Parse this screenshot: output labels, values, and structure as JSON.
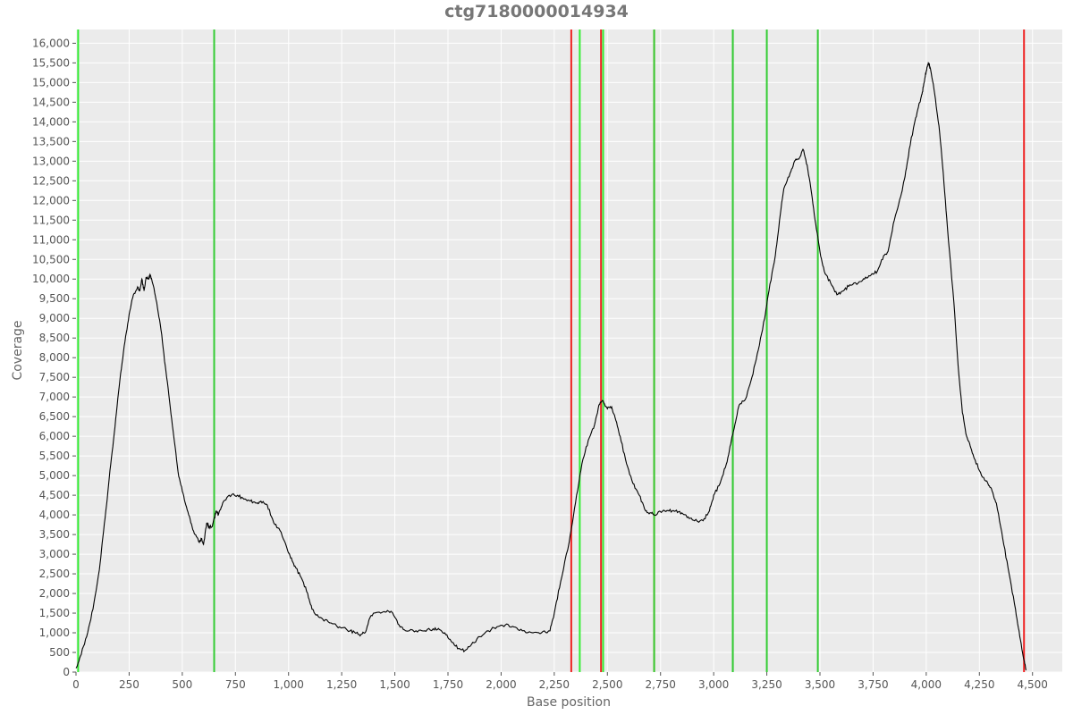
{
  "chart_data": {
    "type": "line",
    "title": "ctg7180000014934",
    "xlabel": "Base position",
    "ylabel": "Coverage",
    "xlim": [
      0,
      4640
    ],
    "ylim": [
      0,
      16350
    ],
    "x_ticks": [
      0,
      250,
      500,
      750,
      1000,
      1250,
      1500,
      1750,
      2000,
      2250,
      2500,
      2750,
      3000,
      3250,
      3500,
      3750,
      4000,
      4250,
      4500
    ],
    "x_tick_labels": [
      "0",
      "250",
      "500",
      "750",
      "1,000",
      "1,250",
      "1,500",
      "1,750",
      "2,000",
      "2,250",
      "2,500",
      "2,750",
      "3,000",
      "3,250",
      "3,500",
      "3,750",
      "4,000",
      "4,250",
      "4,500"
    ],
    "y_ticks": [
      0,
      500,
      1000,
      1500,
      2000,
      2500,
      3000,
      3500,
      4000,
      4500,
      5000,
      5500,
      6000,
      6500,
      7000,
      7500,
      8000,
      8500,
      9000,
      9500,
      10000,
      10500,
      11000,
      11500,
      12000,
      12500,
      13000,
      13500,
      14000,
      14500,
      15000,
      15500,
      16000
    ],
    "y_tick_labels": [
      "0",
      "500",
      "1,000",
      "1,500",
      "2,000",
      "2,500",
      "3,000",
      "3,500",
      "4,000",
      "4,500",
      "5,000",
      "5,500",
      "6,000",
      "6,500",
      "7,000",
      "7,500",
      "8,000",
      "8,500",
      "9,000",
      "9,500",
      "10,000",
      "10,500",
      "11,000",
      "11,500",
      "12,000",
      "12,500",
      "13,000",
      "13,500",
      "14,000",
      "14,500",
      "15,000",
      "15,500",
      "16,000"
    ],
    "grid": true,
    "series": [
      {
        "color": "#000000",
        "points": [
          [
            0,
            100
          ],
          [
            20,
            400
          ],
          [
            50,
            900
          ],
          [
            80,
            1600
          ],
          [
            110,
            2600
          ],
          [
            130,
            3600
          ],
          [
            150,
            4600
          ],
          [
            170,
            5600
          ],
          [
            190,
            6600
          ],
          [
            210,
            7600
          ],
          [
            230,
            8400
          ],
          [
            250,
            9100
          ],
          [
            270,
            9600
          ],
          [
            290,
            9800
          ],
          [
            300,
            9700
          ],
          [
            310,
            10000
          ],
          [
            320,
            9700
          ],
          [
            330,
            10050
          ],
          [
            340,
            10000
          ],
          [
            350,
            10100
          ],
          [
            360,
            9900
          ],
          [
            380,
            9400
          ],
          [
            400,
            8700
          ],
          [
            420,
            7800
          ],
          [
            440,
            6900
          ],
          [
            460,
            6000
          ],
          [
            480,
            5100
          ],
          [
            500,
            4600
          ],
          [
            520,
            4200
          ],
          [
            540,
            3800
          ],
          [
            560,
            3500
          ],
          [
            580,
            3300
          ],
          [
            590,
            3400
          ],
          [
            600,
            3250
          ],
          [
            615,
            3800
          ],
          [
            625,
            3700
          ],
          [
            640,
            3700
          ],
          [
            650,
            3900
          ],
          [
            660,
            4100
          ],
          [
            670,
            4000
          ],
          [
            690,
            4300
          ],
          [
            720,
            4500
          ],
          [
            760,
            4500
          ],
          [
            790,
            4400
          ],
          [
            820,
            4350
          ],
          [
            850,
            4300
          ],
          [
            870,
            4350
          ],
          [
            900,
            4250
          ],
          [
            930,
            3800
          ],
          [
            960,
            3600
          ],
          [
            990,
            3200
          ],
          [
            1010,
            2900
          ],
          [
            1030,
            2700
          ],
          [
            1060,
            2400
          ],
          [
            1090,
            2000
          ],
          [
            1110,
            1600
          ],
          [
            1130,
            1450
          ],
          [
            1160,
            1350
          ],
          [
            1200,
            1250
          ],
          [
            1240,
            1150
          ],
          [
            1290,
            1050
          ],
          [
            1320,
            1000
          ],
          [
            1340,
            950
          ],
          [
            1360,
            1000
          ],
          [
            1380,
            1350
          ],
          [
            1400,
            1500
          ],
          [
            1440,
            1520
          ],
          [
            1470,
            1550
          ],
          [
            1490,
            1500
          ],
          [
            1520,
            1200
          ],
          [
            1550,
            1050
          ],
          [
            1600,
            1050
          ],
          [
            1640,
            1050
          ],
          [
            1680,
            1100
          ],
          [
            1710,
            1080
          ],
          [
            1740,
            950
          ],
          [
            1770,
            750
          ],
          [
            1800,
            600
          ],
          [
            1830,
            550
          ],
          [
            1860,
            700
          ],
          [
            1900,
            900
          ],
          [
            1940,
            1050
          ],
          [
            1980,
            1150
          ],
          [
            2020,
            1200
          ],
          [
            2060,
            1150
          ],
          [
            2100,
            1050
          ],
          [
            2150,
            1000
          ],
          [
            2190,
            1000
          ],
          [
            2230,
            1050
          ],
          [
            2250,
            1500
          ],
          [
            2280,
            2300
          ],
          [
            2320,
            3300
          ],
          [
            2350,
            4300
          ],
          [
            2380,
            5300
          ],
          [
            2410,
            5900
          ],
          [
            2440,
            6300
          ],
          [
            2460,
            6800
          ],
          [
            2480,
            6900
          ],
          [
            2500,
            6700
          ],
          [
            2520,
            6750
          ],
          [
            2540,
            6400
          ],
          [
            2560,
            6000
          ],
          [
            2590,
            5300
          ],
          [
            2620,
            4800
          ],
          [
            2650,
            4500
          ],
          [
            2680,
            4100
          ],
          [
            2700,
            4050
          ],
          [
            2720,
            4000
          ],
          [
            2760,
            4100
          ],
          [
            2790,
            4100
          ],
          [
            2820,
            4100
          ],
          [
            2850,
            4050
          ],
          [
            2880,
            3950
          ],
          [
            2910,
            3850
          ],
          [
            2950,
            3850
          ],
          [
            2980,
            4100
          ],
          [
            3000,
            4500
          ],
          [
            3030,
            4800
          ],
          [
            3060,
            5300
          ],
          [
            3080,
            5800
          ],
          [
            3100,
            6300
          ],
          [
            3120,
            6800
          ],
          [
            3150,
            6950
          ],
          [
            3180,
            7500
          ],
          [
            3210,
            8200
          ],
          [
            3240,
            9000
          ],
          [
            3260,
            9700
          ],
          [
            3290,
            10600
          ],
          [
            3310,
            11500
          ],
          [
            3330,
            12300
          ],
          [
            3360,
            12700
          ],
          [
            3380,
            13000
          ],
          [
            3400,
            13050
          ],
          [
            3420,
            13300
          ],
          [
            3440,
            12900
          ],
          [
            3460,
            12200
          ],
          [
            3480,
            11400
          ],
          [
            3500,
            10700
          ],
          [
            3520,
            10200
          ],
          [
            3550,
            9900
          ],
          [
            3580,
            9600
          ],
          [
            3610,
            9700
          ],
          [
            3640,
            9850
          ],
          [
            3680,
            9900
          ],
          [
            3710,
            10000
          ],
          [
            3740,
            10100
          ],
          [
            3770,
            10200
          ],
          [
            3800,
            10600
          ],
          [
            3820,
            10700
          ],
          [
            3850,
            11500
          ],
          [
            3880,
            12100
          ],
          [
            3900,
            12600
          ],
          [
            3920,
            13300
          ],
          [
            3950,
            14100
          ],
          [
            3970,
            14500
          ],
          [
            3980,
            14700
          ],
          [
            3990,
            15000
          ],
          [
            4000,
            15300
          ],
          [
            4010,
            15500
          ],
          [
            4020,
            15350
          ],
          [
            4040,
            14700
          ],
          [
            4060,
            13900
          ],
          [
            4080,
            12700
          ],
          [
            4100,
            11300
          ],
          [
            4130,
            9400
          ],
          [
            4150,
            7800
          ],
          [
            4170,
            6600
          ],
          [
            4190,
            6000
          ],
          [
            4210,
            5700
          ],
          [
            4230,
            5400
          ],
          [
            4260,
            5000
          ],
          [
            4290,
            4800
          ],
          [
            4310,
            4600
          ],
          [
            4330,
            4300
          ],
          [
            4360,
            3400
          ],
          [
            4390,
            2500
          ],
          [
            4420,
            1600
          ],
          [
            4440,
            900
          ],
          [
            4460,
            300
          ],
          [
            4470,
            50
          ]
        ]
      }
    ],
    "vertical_lines": [
      {
        "x": 10,
        "color": "#33ee33"
      },
      {
        "x": 650,
        "color": "#33cc33"
      },
      {
        "x": 2330,
        "color": "#ee2222"
      },
      {
        "x": 2370,
        "color": "#33ee33"
      },
      {
        "x": 2470,
        "color": "#ee2222"
      },
      {
        "x": 2480,
        "color": "#33ee33"
      },
      {
        "x": 2720,
        "color": "#ff6600"
      },
      {
        "x": 2720,
        "color": "#33cc33"
      },
      {
        "x": 3090,
        "color": "#2a8a2a"
      },
      {
        "x": 3090,
        "color": "#33cc33"
      },
      {
        "x": 3250,
        "color": "#33cc33"
      },
      {
        "x": 3490,
        "color": "#33cc33"
      },
      {
        "x": 4460,
        "color": "#ee2222"
      }
    ],
    "colors": {
      "plot_background": "#ebebeb",
      "grid": "#ffffff",
      "line": "#000000"
    }
  }
}
